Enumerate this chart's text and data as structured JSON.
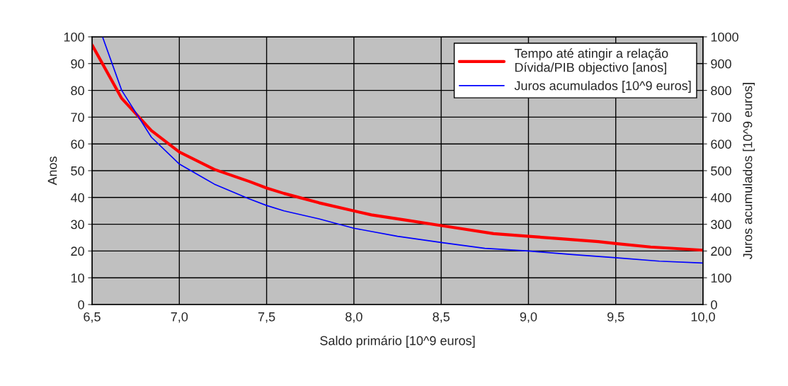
{
  "chart_data": {
    "type": "line",
    "xlabel": "Saldo primário [10^9 euros]",
    "ylabel": "Anos",
    "y2label": "Juros acumulados [10^9 euros]",
    "xlim": [
      6.5,
      10.0
    ],
    "xticks": [
      {
        "value": 6.5,
        "label": "6,5"
      },
      {
        "value": 7.0,
        "label": "7,0"
      },
      {
        "value": 7.5,
        "label": "7,5"
      },
      {
        "value": 8.0,
        "label": "8,0"
      },
      {
        "value": 8.5,
        "label": "8,5"
      },
      {
        "value": 9.0,
        "label": "9,0"
      },
      {
        "value": 9.5,
        "label": "9,5"
      },
      {
        "value": 10.0,
        "label": "10,0"
      }
    ],
    "ylim": [
      0,
      100
    ],
    "yticks": [
      0,
      10,
      20,
      30,
      40,
      50,
      60,
      70,
      80,
      90,
      100
    ],
    "y2lim": [
      0,
      1000
    ],
    "y2ticks": [
      0,
      100,
      200,
      300,
      400,
      500,
      600,
      700,
      800,
      900,
      1000
    ],
    "grid": true,
    "legend": "top right",
    "marker": "none",
    "line_style": "solid",
    "series": [
      {
        "name": "Tempo até atingir a relação\nDívida/PIB objectivo [anos]",
        "color": "#ff0000",
        "x": [
          6.5,
          6.67,
          6.84,
          7.0,
          7.2,
          7.4,
          7.5,
          7.6,
          7.8,
          8.0,
          8.1,
          8.3,
          8.5,
          8.6,
          8.8,
          9.0,
          9.2,
          9.4,
          9.5,
          9.7,
          10.0
        ],
        "values": [
          97,
          77,
          65,
          57,
          50.5,
          46,
          43.5,
          41.5,
          38,
          35,
          33.5,
          31.5,
          29.5,
          28.5,
          26.5,
          25.5,
          24.5,
          23.5,
          22.8,
          21.5,
          20.3
        ]
      },
      {
        "name": "Juros acumulados [10^9 euros]",
        "color": "#0000ff",
        "axis": "y2",
        "x": [
          6.56,
          6.67,
          6.84,
          7.0,
          7.2,
          7.4,
          7.5,
          7.6,
          7.8,
          8.0,
          8.25,
          8.5,
          8.75,
          9.0,
          9.25,
          9.5,
          9.75,
          10.0
        ],
        "values": [
          1000,
          800,
          625,
          525,
          450,
          395,
          370,
          350,
          320,
          285,
          255,
          232,
          210,
          200,
          187,
          175,
          162,
          155
        ]
      }
    ]
  }
}
